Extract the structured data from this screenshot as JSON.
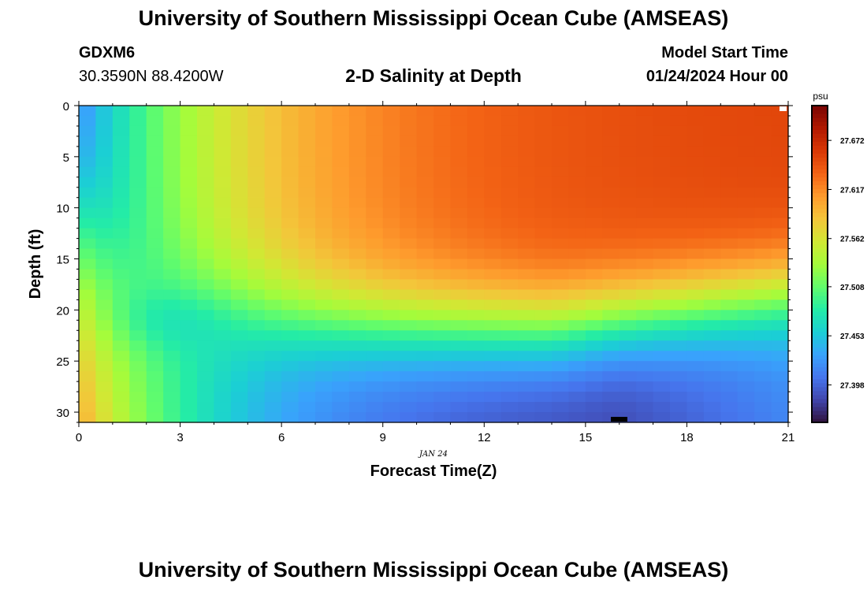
{
  "header": {
    "title": "University of Southern Mississippi Ocean Cube (AMSEAS)",
    "station": "GDXM6",
    "coordinates": "30.3590N  88.4200W",
    "subtitle": "2-D Salinity at Depth",
    "start_label": "Model Start Time",
    "start_value": "01/24/2024 Hour 00",
    "month_label": "JAN 24"
  },
  "footer": {
    "title": "University of Southern Mississippi Ocean Cube (AMSEAS)"
  },
  "chart_data": {
    "type": "heatmap",
    "title": "2-D Salinity at Depth",
    "xlabel": "Forecast Time(Z)",
    "ylabel": "Depth (ft)",
    "xlim": [
      0,
      21
    ],
    "ylim": [
      31,
      0
    ],
    "x_ticks": [
      0,
      3,
      6,
      9,
      12,
      15,
      18,
      21
    ],
    "y_ticks": [
      0,
      5,
      10,
      15,
      20,
      25,
      30
    ],
    "colorbar": {
      "unit": "psu",
      "ticks": [
        "27.672",
        "27.617",
        "27.562",
        "27.508",
        "27.453",
        "27.398"
      ],
      "tick_values": [
        27.672,
        27.617,
        27.562,
        27.508,
        27.453,
        27.398
      ],
      "range": [
        27.356,
        27.711
      ]
    },
    "grid_steps": {
      "time": 42,
      "depth": 31
    },
    "palette": [
      "#30123b",
      "#4145ab",
      "#4675ed",
      "#39a2fc",
      "#1bcfd4",
      "#24eca6",
      "#61fc6c",
      "#a4fc3b",
      "#d1e834",
      "#f3c63a",
      "#fe9b2d",
      "#f36315",
      "#d93806",
      "#b11901",
      "#7a0403"
    ]
  }
}
